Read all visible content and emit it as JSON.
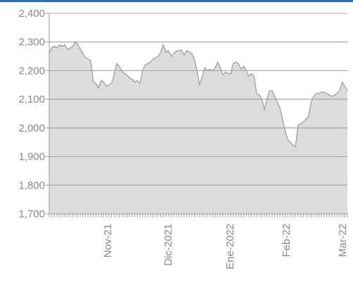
{
  "colors": {
    "top_rule": "#2f6db5",
    "area_fill": "#dcdcdc",
    "area_line": "#9a9a9a",
    "gridline": "#a6a6a6",
    "axis": "#999999",
    "tick_text": "#888888"
  },
  "chart_data": {
    "type": "area",
    "title": "",
    "xlabel": "",
    "ylabel": "",
    "ylim": [
      1700,
      2400
    ],
    "y_ticks": [
      1700,
      1800,
      1900,
      2000,
      2100,
      2200,
      2300,
      2400
    ],
    "y_tick_labels": [
      "1,700",
      "1,800",
      "1,900",
      "2,000",
      "2,100",
      "2,200",
      "2,300",
      "2,400"
    ],
    "x_tick_labels": [
      "Nov-21",
      "Dic-2021",
      "Ene-2022",
      "Feb-22",
      "Mar-22"
    ],
    "grid": "horizontal",
    "legend": "none",
    "series": [
      {
        "values": [
          2260,
          2280,
          2285,
          2280,
          2290,
          2285,
          2290,
          2275,
          2278,
          2285,
          2300,
          2292,
          2275,
          2260,
          2245,
          2240,
          2235,
          2160,
          2155,
          2140,
          2165,
          2160,
          2145,
          2150,
          2155,
          2185,
          2225,
          2215,
          2200,
          2190,
          2185,
          2175,
          2170,
          2160,
          2165,
          2155,
          2200,
          2220,
          2225,
          2230,
          2240,
          2245,
          2250,
          2265,
          2290,
          2265,
          2270,
          2250,
          2260,
          2268,
          2270,
          2272,
          2255,
          2270,
          2265,
          2260,
          2240,
          2200,
          2150,
          2180,
          2210,
          2200,
          2205,
          2200,
          2210,
          2230,
          2210,
          2185,
          2195,
          2190,
          2190,
          2225,
          2230,
          2225,
          2205,
          2215,
          2200,
          2180,
          2190,
          2180,
          2120,
          2115,
          2100,
          2065,
          2100,
          2130,
          2130,
          2110,
          2090,
          2070,
          2030,
          1990,
          1960,
          1950,
          1940,
          1935,
          2010,
          2015,
          2020,
          2030,
          2040,
          2090,
          2110,
          2120,
          2120,
          2125,
          2125,
          2120,
          2115,
          2110,
          2115,
          2120,
          2130,
          2160,
          2145,
          2130
        ]
      }
    ]
  }
}
